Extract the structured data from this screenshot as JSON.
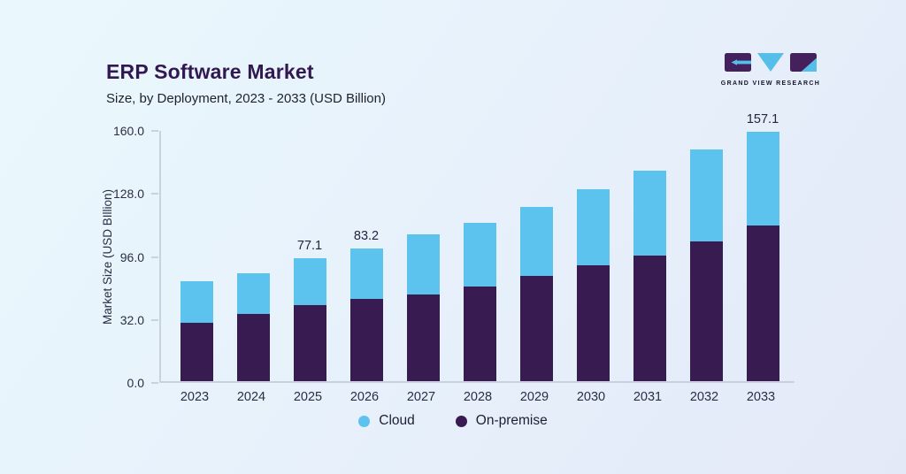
{
  "header": {
    "title": "ERP Software Market",
    "subtitle": "Size, by Deployment, 2023 - 2033 (USD Billion)"
  },
  "logo": {
    "text": "GRAND VIEW RESEARCH",
    "icons": [
      "g-mark-icon",
      "v-triangle-icon",
      "r-mark-icon"
    ],
    "purple": "#44215C",
    "cyan": "#56BFE9"
  },
  "colors": {
    "cloud": "#5CC3EE",
    "on_premise": "#371B51",
    "axis_line": "#C9D1DE",
    "title_text": "#321850",
    "body_text": "#22243A",
    "background_start": "#EAF8FD",
    "background_end": "#E4E9F8"
  },
  "chart_data": {
    "type": "bar",
    "stacked": true,
    "title": "ERP Software Market",
    "subtitle": "Size, by Deployment, 2023 - 2033 (USD Billion)",
    "xlabel": "",
    "ylabel": "Market Size (USD BIllion)",
    "categories": [
      "2023",
      "2024",
      "2025",
      "2026",
      "2027",
      "2028",
      "2029",
      "2030",
      "2031",
      "2032",
      "2033"
    ],
    "series": [
      {
        "name": "Cloud",
        "color": "#5CC3EE",
        "values": [
          26.0,
          25.5,
          29.6,
          31.7,
          38.0,
          40.0,
          43.5,
          47.5,
          53.5,
          58.0,
          59.1
        ]
      },
      {
        "name": "On-premise",
        "color": "#371B51",
        "values": [
          36.5,
          42.0,
          47.5,
          51.5,
          54.5,
          59.5,
          66.0,
          73.0,
          79.0,
          88.0,
          98.0
        ]
      }
    ],
    "stack_order_bottom_to_top": [
      "On-premise",
      "Cloud"
    ],
    "totals": [
      62.5,
      67.5,
      77.1,
      83.2,
      92.5,
      99.5,
      109.5,
      120.5,
      132.5,
      146.0,
      157.1
    ],
    "value_labels": [
      "",
      "",
      "77.1",
      "83.2",
      "",
      "",
      "",
      "",
      "",
      "",
      "157.1"
    ],
    "y_tick_labels": [
      "160.0",
      "128.0",
      "96.0",
      "32.0",
      "0.0"
    ],
    "ylim": [
      0,
      160
    ],
    "grid": false,
    "legend_position": "bottom",
    "legend": [
      {
        "label": "Cloud",
        "color": "#5CC3EE"
      },
      {
        "label": "On-premise",
        "color": "#371B51"
      }
    ]
  }
}
